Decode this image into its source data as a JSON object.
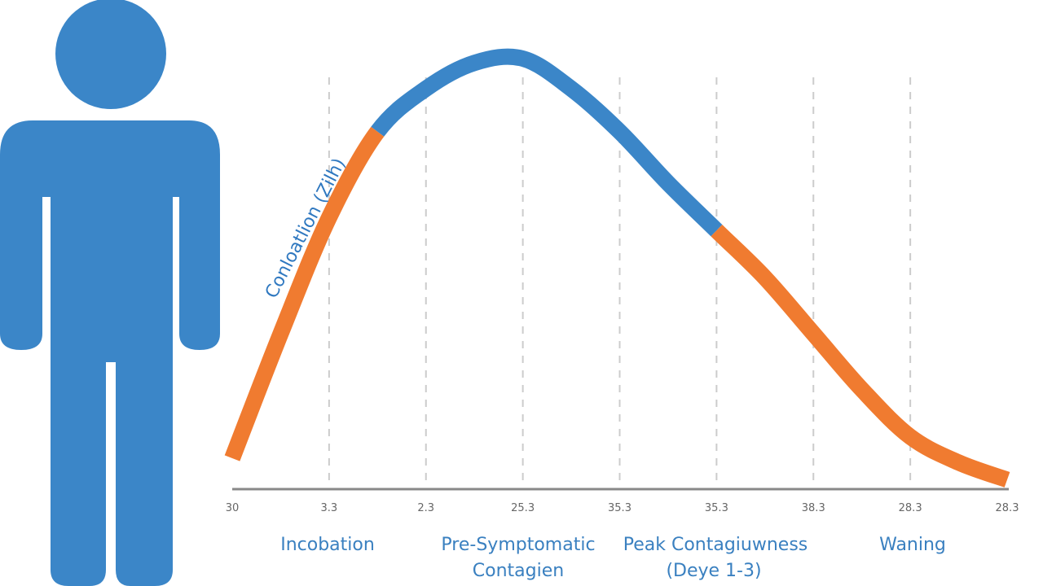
{
  "colors": {
    "blue": "#3b86c8",
    "orange": "#f07b30",
    "axis": "#888888",
    "grid": "#cccccc",
    "label": "#3a80c0"
  },
  "figure": {
    "icon": "person-icon"
  },
  "chart_data": {
    "type": "line",
    "title": "",
    "ylabel": "Conloatlion (Zilh)",
    "xlabel": "",
    "tick_labels": [
      "30",
      "3.3",
      "2.3",
      "25.3",
      "35.3",
      "35.3",
      "38.3",
      "28.3",
      "28.3"
    ],
    "phases": [
      {
        "label": "Incobation"
      },
      {
        "label": "Pre-Symptomatic",
        "label2": "Contagien"
      },
      {
        "label": "Peak Contagiuwness",
        "label2": "(Deye 1-3)"
      },
      {
        "label": "Waning"
      }
    ],
    "ylim": [
      0,
      1
    ],
    "grid": "vertical-dashed",
    "series": [
      {
        "values": [
          0.07,
          0.36,
          0.63,
          0.83,
          0.93,
          0.99,
          1.0,
          0.93,
          0.83,
          0.71,
          0.6,
          0.49,
          0.36,
          0.23,
          0.12,
          0.06,
          0.02
        ],
        "segments": [
          {
            "from": 0,
            "to": 3,
            "color": "orange"
          },
          {
            "from": 3,
            "to": 10,
            "color": "blue"
          },
          {
            "from": 10,
            "to": 16,
            "color": "orange"
          }
        ]
      }
    ]
  }
}
